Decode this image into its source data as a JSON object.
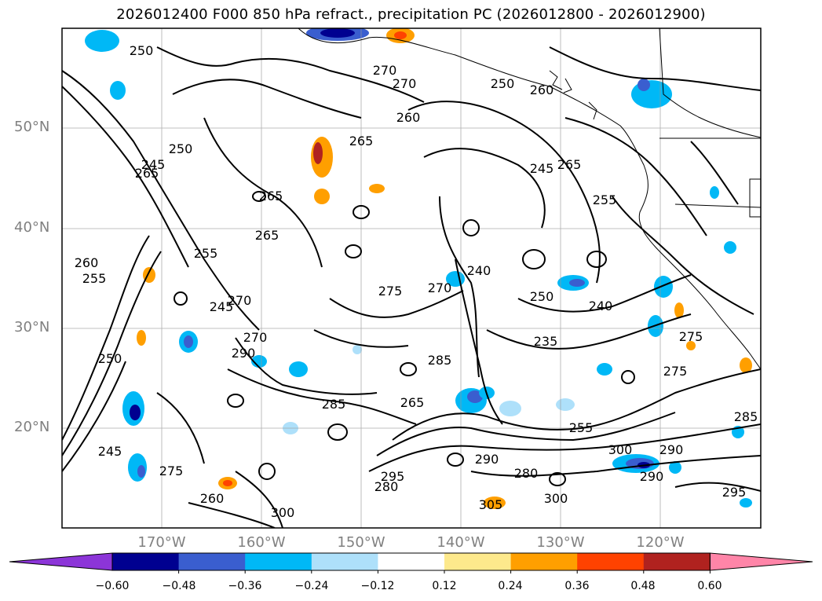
{
  "title": "2026012400 F000 850 hPa refract., precipitation PC (2026012800 - 2026012900)",
  "map": {
    "lat_labels": [
      "50°N",
      "40°N",
      "30°N",
      "20°N"
    ],
    "lon_labels": [
      "170°W",
      "160°W",
      "150°W",
      "140°W",
      "130°W",
      "120°W"
    ],
    "contour_labels": [
      "250",
      "270",
      "270",
      "260",
      "250",
      "265",
      "245",
      "265",
      "255",
      "250",
      "245",
      "270",
      "265",
      "260",
      "255",
      "255",
      "260",
      "265",
      "245",
      "240",
      "270",
      "275",
      "275",
      "270",
      "250",
      "235",
      "240",
      "285",
      "285",
      "265",
      "255",
      "250",
      "245",
      "300",
      "290",
      "275",
      "280",
      "290",
      "290",
      "295",
      "300",
      "305",
      "280",
      "260",
      "275",
      "295",
      "290",
      "300",
      "265",
      "285"
    ]
  },
  "colorbar": {
    "colors": [
      "#8c35d8",
      "#000090",
      "#3a5ecf",
      "#00b8f6",
      "#aee0fa",
      "#ffffff",
      "#fde98c",
      "#ff9f00",
      "#ff4200",
      "#b0221f",
      "#ff85a8"
    ],
    "tick_labels": [
      "−0.60",
      "−0.48",
      "−0.36",
      "−0.24",
      "−0.12",
      "0.12",
      "0.24",
      "0.36",
      "0.48",
      "0.60"
    ]
  }
}
